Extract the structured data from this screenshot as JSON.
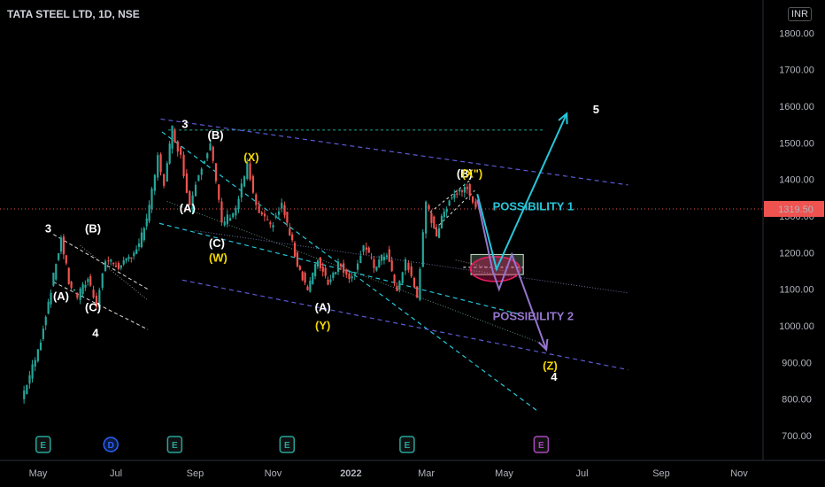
{
  "header": {
    "title": "TATA STEEL LTD, 1D, NSE",
    "currency": "INR"
  },
  "chart_data": {
    "type": "candlestick",
    "ylim": [
      650,
      1850
    ],
    "y_ticks": [
      700,
      800,
      900,
      1000,
      1100,
      1200,
      1300,
      1400,
      1500,
      1600,
      1700
    ],
    "y_tick_labels": [
      "700.00",
      "800.00",
      "900.00",
      "1000.00",
      "1100.00",
      "1200.00",
      "1300.00",
      "1400.00",
      "1500.00",
      "1600.00",
      "1700.00"
    ],
    "top_tick_label": "1800.00",
    "x_ticks": [
      "May",
      "Jul",
      "Sep",
      "Nov",
      "2022",
      "Mar",
      "May",
      "Jul",
      "Sep",
      "Nov"
    ],
    "last_price": {
      "value": 1319.5,
      "label": "1319.50"
    },
    "price_path": [
      [
        "2021-04-20",
        800
      ],
      [
        "2021-05-03",
        930
      ],
      [
        "2021-05-13",
        1100
      ],
      [
        "2021-05-21",
        1240
      ],
      [
        "2021-05-27",
        1120
      ],
      [
        "2021-06-03",
        1080
      ],
      [
        "2021-06-11",
        1130
      ],
      [
        "2021-06-18",
        1060
      ],
      [
        "2021-06-25",
        1180
      ],
      [
        "2021-07-07",
        1160
      ],
      [
        "2021-07-21",
        1220
      ],
      [
        "2021-07-29",
        1320
      ],
      [
        "2021-08-05",
        1460
      ],
      [
        "2021-08-10",
        1390
      ],
      [
        "2021-08-16",
        1540
      ],
      [
        "2021-08-23",
        1460
      ],
      [
        "2021-08-30",
        1330
      ],
      [
        "2021-09-06",
        1420
      ],
      [
        "2021-09-15",
        1500
      ],
      [
        "2021-09-24",
        1280
      ],
      [
        "2021-10-05",
        1320
      ],
      [
        "2021-10-14",
        1440
      ],
      [
        "2021-10-21",
        1320
      ],
      [
        "2021-11-01",
        1270
      ],
      [
        "2021-11-10",
        1330
      ],
      [
        "2021-11-22",
        1170
      ],
      [
        "2021-11-30",
        1100
      ],
      [
        "2021-12-08",
        1180
      ],
      [
        "2021-12-16",
        1120
      ],
      [
        "2021-12-24",
        1170
      ],
      [
        "2022-01-04",
        1130
      ],
      [
        "2022-01-13",
        1220
      ],
      [
        "2022-01-21",
        1160
      ],
      [
        "2022-01-31",
        1200
      ],
      [
        "2022-02-08",
        1090
      ],
      [
        "2022-02-15",
        1180
      ],
      [
        "2022-02-24",
        1080
      ],
      [
        "2022-03-03",
        1330
      ],
      [
        "2022-03-11",
        1250
      ],
      [
        "2022-03-21",
        1350
      ],
      [
        "2022-04-04",
        1385
      ],
      [
        "2022-04-11",
        1319.5
      ]
    ],
    "annotations": [
      {
        "text": "3",
        "date": "2021-05-09",
        "price": 1265,
        "color": "#ffffff"
      },
      {
        "text": "(A)",
        "date": "2021-05-19",
        "price": 1080,
        "color": "#ffffff"
      },
      {
        "text": "(B)",
        "date": "2021-06-13",
        "price": 1265,
        "color": "#ffffff"
      },
      {
        "text": "(C)",
        "date": "2021-06-13",
        "price": 1050,
        "color": "#ffffff"
      },
      {
        "text": "4",
        "date": "2021-06-15",
        "price": 980,
        "color": "#ffffff"
      },
      {
        "text": "3",
        "date": "2021-08-24",
        "price": 1550,
        "color": "#ffffff"
      },
      {
        "text": "(A)",
        "date": "2021-08-26",
        "price": 1320,
        "color": "#ffffff"
      },
      {
        "text": "(B)",
        "date": "2021-09-17",
        "price": 1520,
        "color": "#ffffff"
      },
      {
        "text": "(C)",
        "date": "2021-09-18",
        "price": 1225,
        "color": "#ffffff"
      },
      {
        "text": "(W)",
        "date": "2021-09-19",
        "price": 1185,
        "color": "#f5d800"
      },
      {
        "text": "(X)",
        "date": "2021-10-15",
        "price": 1460,
        "color": "#f5d800"
      },
      {
        "text": "(A)",
        "date": "2021-12-10",
        "price": 1050,
        "color": "#ffffff"
      },
      {
        "text": "(Y)",
        "date": "2021-12-10",
        "price": 1000,
        "color": "#f5d800"
      },
      {
        "text": "(B)",
        "date": "2022-03-31",
        "price": 1415,
        "color": "#ffffff"
      },
      {
        "text": "(X\")",
        "date": "2022-04-06",
        "price": 1415,
        "color": "#f5d800"
      },
      {
        "text": "5",
        "date": "2022-07-12",
        "price": 1590,
        "color": "#ffffff"
      },
      {
        "text": "(Z)",
        "date": "2022-06-06",
        "price": 890,
        "color": "#f5d800"
      },
      {
        "text": "4",
        "date": "2022-06-09",
        "price": 860,
        "color": "#ffffff"
      }
    ],
    "possibilities": [
      {
        "text": "POSSIBILITY 1",
        "date": "2022-04-22",
        "price": 1325,
        "color": "#26c6da"
      },
      {
        "text": "POSSIBILITY 2",
        "date": "2022-04-22",
        "price": 1025,
        "color": "#9575cd"
      }
    ],
    "events": [
      {
        "label": "E",
        "date": "2021-05-05",
        "color": "#26a69a"
      },
      {
        "label": "D",
        "date": "2021-06-27",
        "color": "#2962ff"
      },
      {
        "label": "E",
        "date": "2021-08-16",
        "color": "#26a69a"
      },
      {
        "label": "E",
        "date": "2021-11-12",
        "color": "#26a69a"
      },
      {
        "label": "E",
        "date": "2022-02-14",
        "color": "#26a69a"
      },
      {
        "label": "E",
        "date": "2022-05-30",
        "color": "#ab47bc"
      }
    ]
  },
  "colors": {
    "up": "#26a69a",
    "down": "#ef5350",
    "cyan": "#26c6da",
    "purple": "#9575cd",
    "blue_dash": "#5b5bd6",
    "yellow": "#f5d800"
  }
}
